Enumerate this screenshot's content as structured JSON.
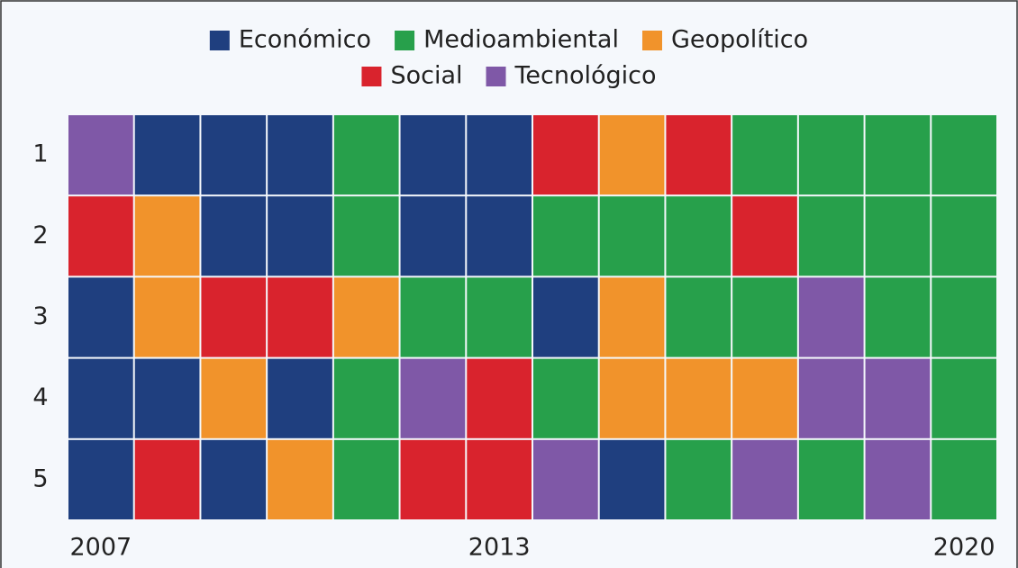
{
  "chart_data": {
    "type": "heatmap",
    "legend": [
      {
        "name": "Económico",
        "color": "#1f3f7f"
      },
      {
        "name": "Medioambiental",
        "color": "#27a04b"
      },
      {
        "name": "Geopolítico",
        "color": "#f1932b"
      },
      {
        "name": "Social",
        "color": "#d9232d"
      },
      {
        "name": "Tecnológico",
        "color": "#7f58a7"
      }
    ],
    "x": [
      "2007",
      null,
      null,
      null,
      null,
      null,
      "2013",
      null,
      null,
      null,
      null,
      null,
      null,
      "2020"
    ],
    "rows": [
      "1",
      "2",
      "3",
      "4",
      "5"
    ],
    "cells": [
      [
        "Tecnológico",
        "Económico",
        "Económico",
        "Económico",
        "Medioambiental",
        "Económico",
        "Económico",
        "Social",
        "Geopolítico",
        "Social",
        "Medioambiental",
        "Medioambiental",
        "Medioambiental",
        "Medioambiental"
      ],
      [
        "Social",
        "Geopolítico",
        "Económico",
        "Económico",
        "Medioambiental",
        "Económico",
        "Económico",
        "Medioambiental",
        "Medioambiental",
        "Medioambiental",
        "Social",
        "Medioambiental",
        "Medioambiental",
        "Medioambiental"
      ],
      [
        "Económico",
        "Geopolítico",
        "Social",
        "Social",
        "Geopolítico",
        "Medioambiental",
        "Medioambiental",
        "Económico",
        "Geopolítico",
        "Medioambiental",
        "Medioambiental",
        "Tecnológico",
        "Medioambiental",
        "Medioambiental"
      ],
      [
        "Económico",
        "Económico",
        "Geopolítico",
        "Económico",
        "Medioambiental",
        "Tecnológico",
        "Social",
        "Medioambiental",
        "Geopolítico",
        "Geopolítico",
        "Geopolítico",
        "Tecnológico",
        "Tecnológico",
        "Medioambiental"
      ],
      [
        "Económico",
        "Social",
        "Económico",
        "Geopolítico",
        "Medioambiental",
        "Social",
        "Social",
        "Tecnológico",
        "Económico",
        "Medioambiental",
        "Tecnológico",
        "Medioambiental",
        "Tecnológico",
        "Medioambiental"
      ]
    ]
  }
}
